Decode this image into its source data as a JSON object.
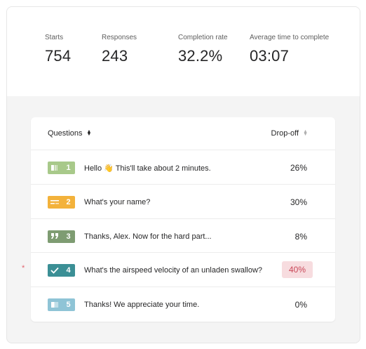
{
  "stats": [
    {
      "label": "Starts",
      "value": "754"
    },
    {
      "label": "Responses",
      "value": "243"
    },
    {
      "label": "Completion rate",
      "value": "32.2%"
    },
    {
      "label": "Average time to complete",
      "value": "03:07"
    }
  ],
  "table": {
    "col_questions": "Questions",
    "col_dropoff": "Drop-off"
  },
  "questions": [
    {
      "num": "1",
      "icon": "welcome-screen-icon",
      "color": "#a8c98a",
      "text": "Hello",
      "emoji": "👋",
      "text_after": "This'll take about 2 minutes.",
      "dropoff": "26%"
    },
    {
      "num": "2",
      "icon": "short-text-icon",
      "color": "#f3b23b",
      "text": "What's your name?",
      "dropoff": "30%"
    },
    {
      "num": "3",
      "icon": "statement-quote-icon",
      "color": "#7e9c72",
      "text": "Thanks, Alex. Now for the hard part...",
      "dropoff": "8%"
    },
    {
      "num": "4",
      "icon": "checkmark-icon",
      "color": "#3b8f95",
      "text": "What's the airspeed velocity of an unladen swallow?",
      "dropoff": "40%",
      "required_mark": "*"
    },
    {
      "num": "5",
      "icon": "thank-you-screen-icon",
      "color": "#8fc4d6",
      "text": "Thanks! We appreciate your time.",
      "dropoff": "0%"
    }
  ],
  "colors": {
    "highlight_bg": "#f7dcdf",
    "highlight_text": "#c94657",
    "required": "#e2646f"
  }
}
